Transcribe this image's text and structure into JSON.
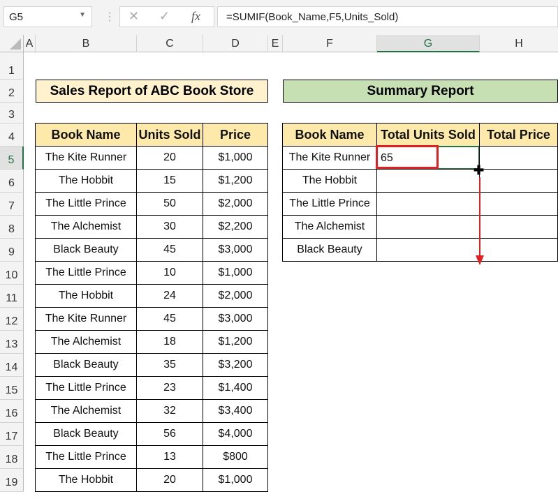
{
  "name_box": "G5",
  "formula": "=SUMIF(Book_Name,F5,Units_Sold)",
  "fx_label": "fx",
  "columns": [
    "A",
    "B",
    "C",
    "D",
    "E",
    "F",
    "G",
    "H"
  ],
  "rows": [
    "1",
    "2",
    "3",
    "4",
    "5",
    "6",
    "7",
    "8",
    "9",
    "10",
    "11",
    "12",
    "13",
    "14",
    "15",
    "16",
    "17",
    "18",
    "19"
  ],
  "sales": {
    "title": "Sales Report of ABC Book Store",
    "headers": [
      "Book Name",
      "Units Sold",
      "Price"
    ],
    "data": [
      [
        "The Kite Runner",
        "20",
        "$1,000"
      ],
      [
        "The Hobbit",
        "15",
        "$1,200"
      ],
      [
        "The Little Prince",
        "50",
        "$2,000"
      ],
      [
        "The Alchemist",
        "30",
        "$2,200"
      ],
      [
        "Black Beauty",
        "45",
        "$3,000"
      ],
      [
        "The Little Prince",
        "10",
        "$1,000"
      ],
      [
        "The Hobbit",
        "24",
        "$2,000"
      ],
      [
        "The Kite Runner",
        "45",
        "$3,000"
      ],
      [
        "The Alchemist",
        "18",
        "$1,200"
      ],
      [
        "Black Beauty",
        "35",
        "$3,200"
      ],
      [
        "The Little Prince",
        "23",
        "$1,400"
      ],
      [
        "The Alchemist",
        "32",
        "$3,400"
      ],
      [
        "Black Beauty",
        "56",
        "$4,000"
      ],
      [
        "The Little Prince",
        "13",
        "$800"
      ],
      [
        "The Hobbit",
        "20",
        "$1,000"
      ]
    ]
  },
  "summary": {
    "title": "Summary Report",
    "headers": [
      "Book Name",
      "Total Units Sold",
      "Total Price"
    ],
    "data": [
      [
        "The Kite Runner",
        "65",
        ""
      ],
      [
        "The Hobbit",
        "",
        ""
      ],
      [
        "The Little Prince",
        "",
        ""
      ],
      [
        "The Alchemist",
        "",
        ""
      ],
      [
        "Black Beauty",
        "",
        ""
      ]
    ]
  },
  "colors": {
    "sales_title": "#fff2cc",
    "summary_title": "#c6e0b4",
    "header": "#fde9a9",
    "highlight": "#e02020",
    "selection": "#217346"
  }
}
